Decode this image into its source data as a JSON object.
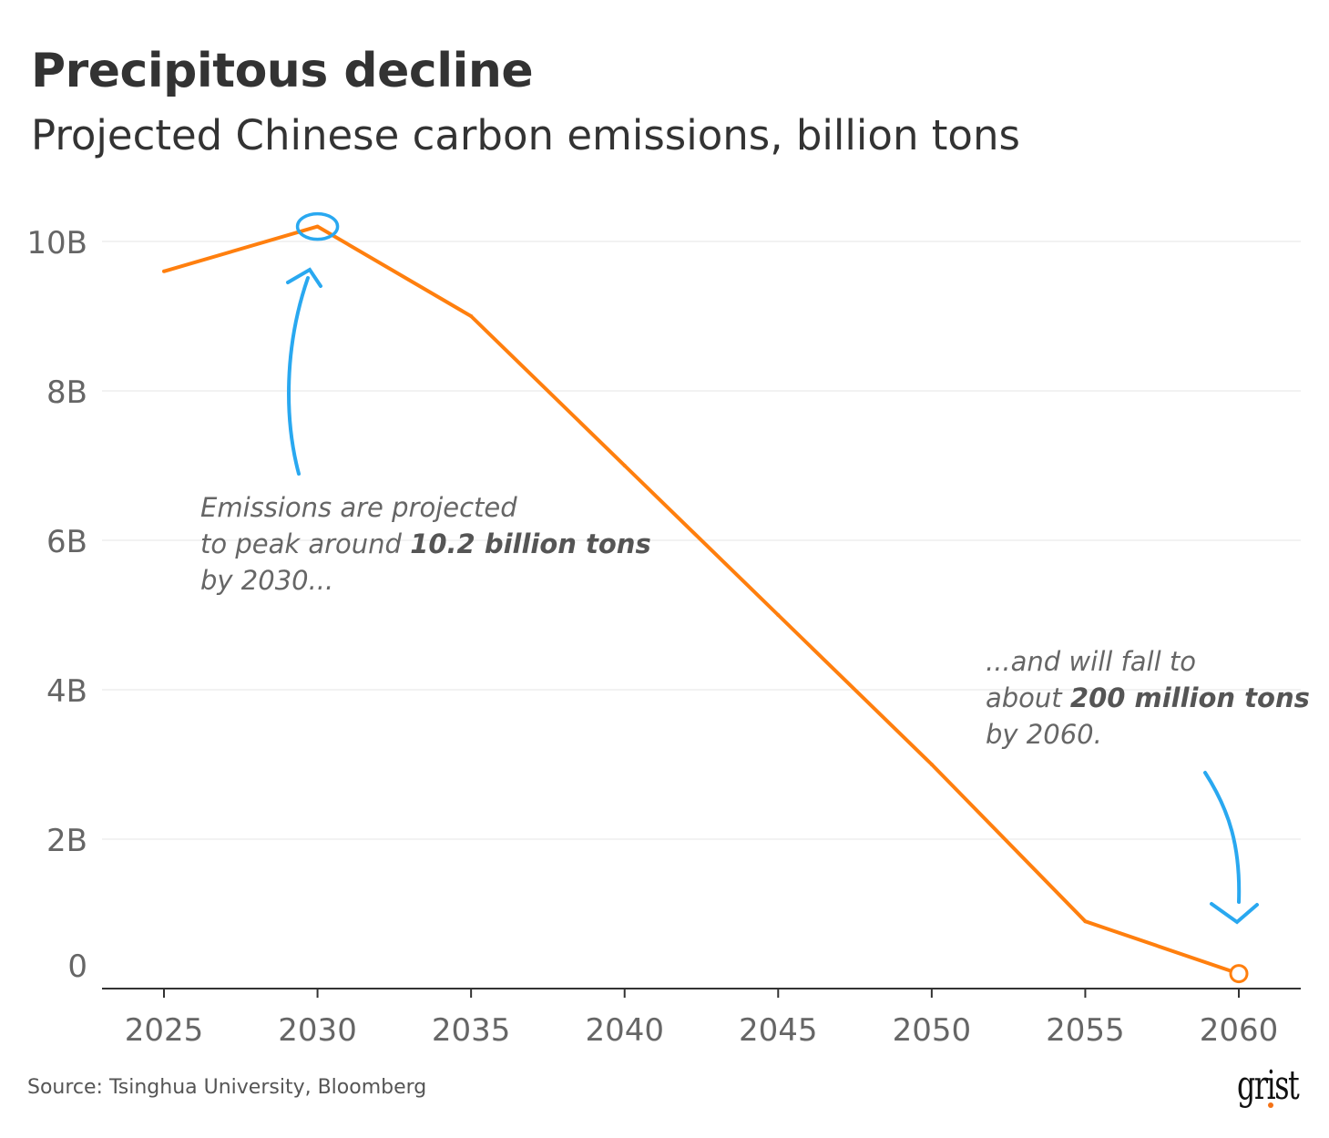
{
  "header": {
    "title": "Precipitous decline",
    "subtitle": "Projected Chinese carbon emissions, billion tons"
  },
  "chart_data": {
    "type": "line",
    "title": "Precipitous decline",
    "subtitle": "Projected Chinese carbon emissions, billion tons",
    "x": [
      2025,
      2030,
      2035,
      2040,
      2045,
      2050,
      2055,
      2060
    ],
    "series": [
      {
        "values": [
          9.6,
          10.2,
          9.0,
          7.0,
          5.0,
          3.0,
          0.9,
          0.2
        ],
        "color": "#ff7f0e"
      }
    ],
    "xticks": [
      "2025",
      "2030",
      "2035",
      "2040",
      "2045",
      "2050",
      "2055",
      "2060"
    ],
    "yticks": [
      {
        "v": 0,
        "label": "0"
      },
      {
        "v": 2,
        "label": "2B"
      },
      {
        "v": 4,
        "label": "4B"
      },
      {
        "v": 6,
        "label": "6B"
      },
      {
        "v": 8,
        "label": "8B"
      },
      {
        "v": 10,
        "label": "10B"
      }
    ],
    "ylim": [
      0,
      10
    ],
    "xlim": [
      2023,
      2062
    ],
    "grid": true,
    "highlight_color": "#29a8f0",
    "annotations": [
      {
        "lines": [
          [
            "Emissions are projected",
            ""
          ],
          [
            "to peak around ",
            "10.2 billion tons"
          ],
          [
            "by 2030...",
            ""
          ]
        ]
      },
      {
        "lines": [
          [
            "...and will fall to",
            ""
          ],
          [
            "about ",
            "200 million tons"
          ],
          [
            "by 2060.",
            ""
          ]
        ]
      }
    ]
  },
  "footer": {
    "source": "Source: Tsinghua University, Bloomberg",
    "logo": "grist"
  }
}
